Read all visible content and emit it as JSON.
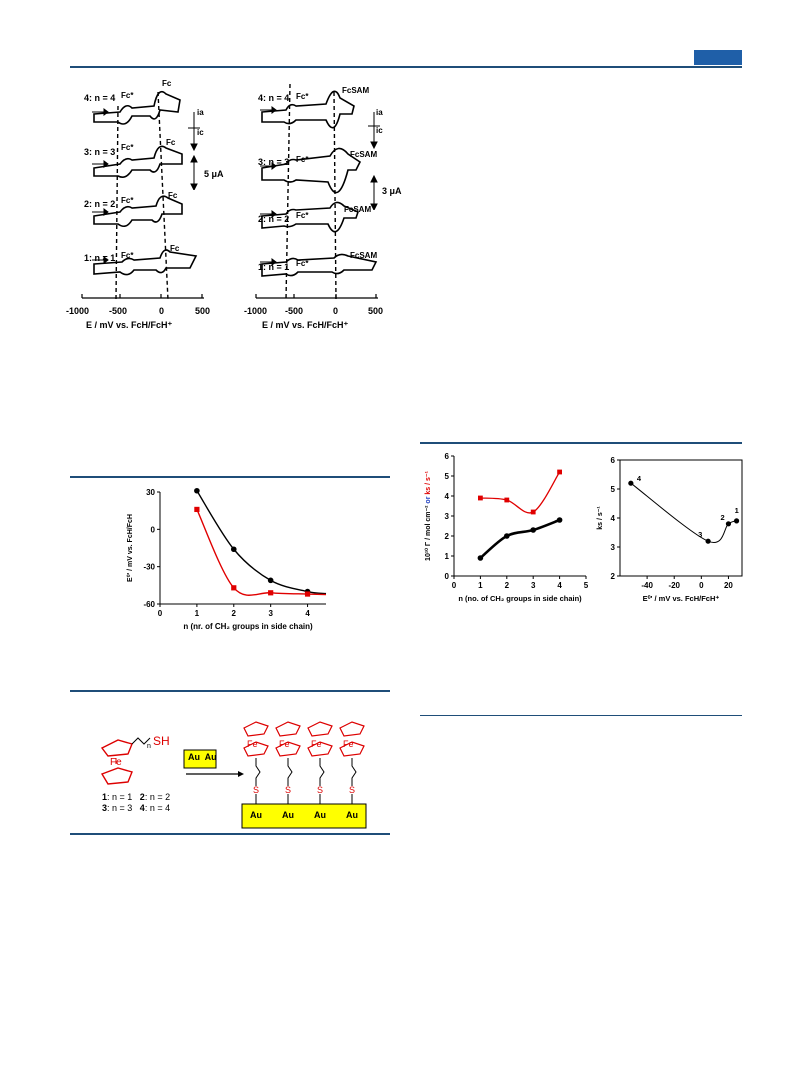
{
  "header": {
    "accent_color": "#1f5fa8",
    "rule_color": "#1f4e79"
  },
  "cv_left": {
    "x_label": "E / mV vs. FcH/FcH⁺",
    "x_ticks": [
      "-1000",
      "-500",
      "0",
      "500"
    ],
    "rows": [
      {
        "label": "4: n = 4",
        "fc_star": "Fc*",
        "fc": "Fc"
      },
      {
        "label": "3: n = 3",
        "fc_star": "Fc*",
        "fc": "Fc"
      },
      {
        "label": "2: n = 2",
        "fc_star": "Fc*",
        "fc": "Fc"
      },
      {
        "label": "1: n = 1",
        "fc_star": "Fc*",
        "fc": "Fc"
      }
    ],
    "ia": "ia",
    "ic": "ic",
    "scale": "5 μA"
  },
  "cv_right": {
    "x_label": "E / mV vs. FcH/FcH⁺",
    "x_ticks": [
      "-1000",
      "-500",
      "0",
      "500"
    ],
    "rows": [
      {
        "label": "4: n = 4",
        "fc_star": "Fc*",
        "fc": "FcSAM"
      },
      {
        "label": "3: n = 3",
        "fc_star": "Fc*",
        "fc": "FcSAM"
      },
      {
        "label": "2: n = 2",
        "fc_star": "Fc*",
        "fc": "FcSAM"
      },
      {
        "label": "1: n = 1",
        "fc_star": "Fc*",
        "fc": "FcSAM"
      }
    ],
    "ia": "ia",
    "ic": "ic",
    "scale": "3 μA"
  },
  "chart_data": [
    {
      "type": "line",
      "xlabel": "n (nr. of CH₂ groups in side chain)",
      "ylabel": "E⁰' / mV vs. FcH/FcH",
      "xlim": [
        0,
        4.5
      ],
      "ylim": [
        -60,
        30
      ],
      "x_ticks": [
        "0",
        "1",
        "2",
        "3",
        "4"
      ],
      "y_ticks": [
        "30",
        "0",
        "-30",
        "-60"
      ],
      "series": [
        {
          "color": "#000000",
          "x": [
            1,
            2,
            3,
            4
          ],
          "y": [
            31,
            -16,
            -41,
            -50
          ]
        },
        {
          "color": "#e00000",
          "x": [
            1,
            2,
            3,
            4
          ],
          "y": [
            16,
            -47,
            -51,
            -52
          ]
        }
      ]
    },
    {
      "type": "line",
      "xlabel": "n (no. of CH₂ groups in side chain)",
      "ylabel_black": "10¹⁰ Γ / mol cm⁻²",
      "ylabel_or": "or",
      "ylabel_red": "ks / s⁻¹",
      "xlim": [
        0,
        5
      ],
      "ylim": [
        0,
        6
      ],
      "x_ticks": [
        "0",
        "1",
        "2",
        "3",
        "4",
        "5"
      ],
      "y_ticks": [
        "6",
        "5",
        "4",
        "3",
        "2",
        "1",
        "0"
      ],
      "series": [
        {
          "color": "#e00000",
          "x": [
            1,
            2,
            3,
            4
          ],
          "y": [
            3.9,
            3.8,
            3.2,
            5.2
          ]
        },
        {
          "color": "#000000",
          "x": [
            1,
            2,
            3,
            4
          ],
          "y": [
            0.9,
            2.0,
            2.3,
            2.8
          ]
        }
      ]
    },
    {
      "type": "line",
      "xlabel": "E⁰' / mV vs. FcH/FcH⁺",
      "ylabel": "ks / s⁻¹",
      "xlim": [
        -60,
        30
      ],
      "ylim": [
        2,
        6
      ],
      "x_ticks": [
        "-40",
        "-20",
        "0",
        "20"
      ],
      "y_ticks": [
        "6",
        "5",
        "4",
        "3",
        "2"
      ],
      "series": [
        {
          "color": "#000000",
          "x": [
            -52,
            5,
            20,
            26
          ],
          "y": [
            5.2,
            3.2,
            3.8,
            3.9
          ],
          "labels": [
            "4",
            "3",
            "2",
            "1"
          ]
        }
      ]
    }
  ],
  "scheme": {
    "fe": "Fe",
    "sh": "SH",
    "n": "n",
    "au_pair": "Au  Au",
    "au": "Au",
    "s": "S",
    "legend_row1": [
      "1",
      ": n = 1   ",
      "2",
      ": n = 2"
    ],
    "legend_row2": [
      "3",
      ": n = 3   ",
      "4",
      ": n = 4"
    ]
  }
}
